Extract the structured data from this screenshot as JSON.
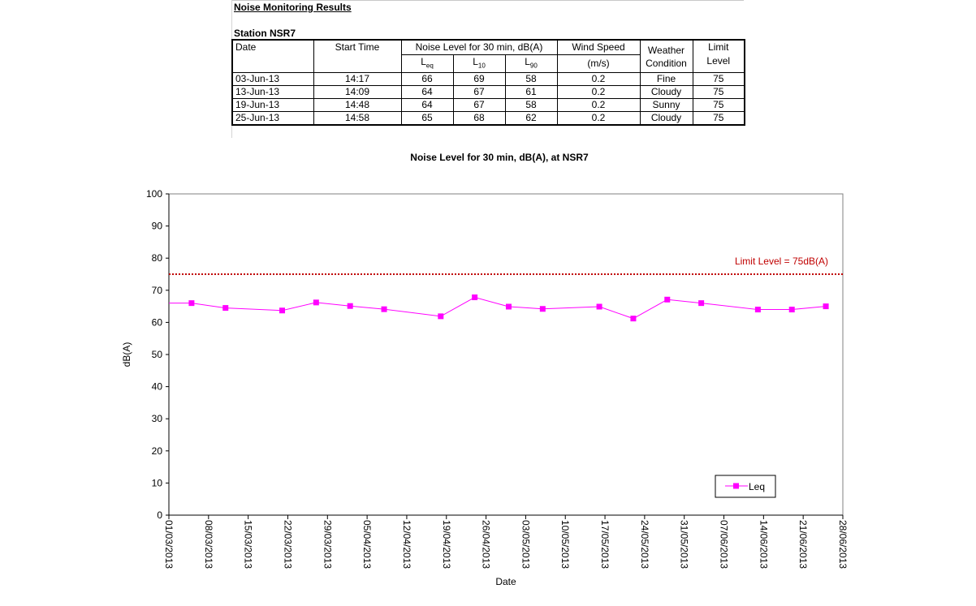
{
  "report": {
    "title": "Noise Monitoring Results",
    "station": "Station NSR7",
    "headers": {
      "date": "Date",
      "start_time": "Start Time",
      "noise_level": "Noise Level for 30 min, dB(A)",
      "leq": "L",
      "leq_sub": "eq",
      "l10": "L",
      "l10_sub": "10",
      "l90": "L",
      "l90_sub": "90",
      "wind_speed": "Wind Speed",
      "wind_unit": "(m/s)",
      "weather": "Weather Condition",
      "limit": "Limit Level"
    },
    "rows": [
      {
        "date": "03-Jun-13",
        "time": "14:17",
        "leq": "66",
        "l10": "69",
        "l90": "58",
        "wind": "0.2",
        "weather": "Fine",
        "limit": "75"
      },
      {
        "date": "13-Jun-13",
        "time": "14:09",
        "leq": "64",
        "l10": "67",
        "l90": "61",
        "wind": "0.2",
        "weather": "Cloudy",
        "limit": "75"
      },
      {
        "date": "19-Jun-13",
        "time": "14:48",
        "leq": "64",
        "l10": "67",
        "l90": "58",
        "wind": "0.2",
        "weather": "Sunny",
        "limit": "75"
      },
      {
        "date": "25-Jun-13",
        "time": "14:58",
        "leq": "65",
        "l10": "68",
        "l90": "62",
        "wind": "0.2",
        "weather": "Cloudy",
        "limit": "75"
      }
    ]
  },
  "chart_data": {
    "type": "line",
    "title": "Noise Level for 30 min, dB(A), at NSR7",
    "xlabel": "Date",
    "ylabel": "dB(A)",
    "xlim": [
      "2013-03-01",
      "2013-06-28"
    ],
    "ylim": [
      0,
      100
    ],
    "yticks": [
      0,
      10,
      20,
      30,
      40,
      50,
      60,
      70,
      80,
      90,
      100
    ],
    "xticks": [
      "01/03/2013",
      "08/03/2013",
      "15/03/2013",
      "22/03/2013",
      "29/03/2013",
      "05/04/2013",
      "12/04/2013",
      "19/04/2013",
      "26/04/2013",
      "03/05/2013",
      "10/05/2013",
      "17/05/2013",
      "24/05/2013",
      "31/05/2013",
      "07/06/2013",
      "14/06/2013",
      "21/06/2013",
      "28/06/2013"
    ],
    "grid": false,
    "legend_position": "bottom-right",
    "series": [
      {
        "name": "Leq",
        "color": "#ff00ff",
        "marker": "square",
        "points": [
          {
            "x": "2013-03-01",
            "y": 66
          },
          {
            "x": "2013-03-05",
            "y": 66
          },
          {
            "x": "2013-03-11",
            "y": 64.5
          },
          {
            "x": "2013-03-21",
            "y": 63.7
          },
          {
            "x": "2013-03-27",
            "y": 66.2
          },
          {
            "x": "2013-04-02",
            "y": 65.1
          },
          {
            "x": "2013-04-08",
            "y": 64.1
          },
          {
            "x": "2013-04-18",
            "y": 61.9
          },
          {
            "x": "2013-04-24",
            "y": 67.8
          },
          {
            "x": "2013-04-30",
            "y": 64.9
          },
          {
            "x": "2013-05-06",
            "y": 64.2
          },
          {
            "x": "2013-05-16",
            "y": 64.9
          },
          {
            "x": "2013-05-22",
            "y": 61.2
          },
          {
            "x": "2013-05-28",
            "y": 67.1
          },
          {
            "x": "2013-06-03",
            "y": 66
          },
          {
            "x": "2013-06-13",
            "y": 64
          },
          {
            "x": "2013-06-19",
            "y": 64
          },
          {
            "x": "2013-06-25",
            "y": 65
          }
        ]
      }
    ],
    "limit": {
      "value": 75,
      "label": "Limit Level  = 75dB(A)",
      "color": "#c00000"
    }
  }
}
